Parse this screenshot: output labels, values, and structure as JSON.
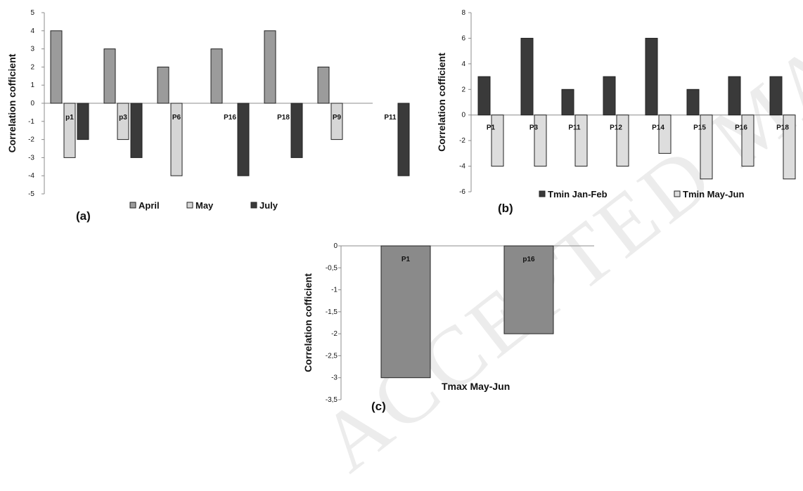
{
  "watermark": "ACCEPTED MANUSCRIPT",
  "colors": {
    "axis": "#8c8c8c",
    "april": "#9b9b9b",
    "may": "#d6d6d6",
    "july": "#3a3a3a",
    "tmin_janfeb": "#3a3a3a",
    "tmin_mayjun": "#dddddd",
    "tmax": "#8a8a8a",
    "bar_stroke": "#222222",
    "text": "#111111"
  },
  "chart_data": [
    {
      "panel_label": "(a)",
      "type": "bar",
      "ylabel": "Correlation cofficient",
      "ylim": [
        -5,
        5
      ],
      "ytick_step": 1,
      "yticks": [
        "5",
        "4",
        "3",
        "2",
        "1",
        "0",
        "-1",
        "-2",
        "-3",
        "-4",
        "-5"
      ],
      "categories": [
        "p1",
        "p3",
        "P6",
        "P16",
        "P18",
        "P9",
        "P11"
      ],
      "series": [
        {
          "name": "April",
          "values": [
            4,
            3,
            2,
            3,
            4,
            2,
            null
          ]
        },
        {
          "name": "May",
          "values": [
            -3,
            -2,
            -4,
            null,
            null,
            -2,
            null
          ]
        },
        {
          "name": "July",
          "values": [
            -2,
            -3,
            null,
            -4,
            -3,
            null,
            -4
          ]
        }
      ],
      "legend": "bottom"
    },
    {
      "panel_label": "(b)",
      "type": "bar",
      "ylabel": "Correlation cofficient",
      "ylim": [
        -6,
        8
      ],
      "ytick_step": 2,
      "yticks": [
        "8",
        "6",
        "4",
        "2",
        "0",
        "-2",
        "-4",
        "-6"
      ],
      "categories": [
        "P1",
        "P3",
        "P11",
        "P12",
        "P14",
        "P15",
        "P16",
        "P18"
      ],
      "series": [
        {
          "name": "Tmin Jan-Feb",
          "values": [
            3,
            6,
            2,
            3,
            6,
            2,
            3,
            3
          ]
        },
        {
          "name": "Tmin May-Jun",
          "values": [
            -4,
            -4,
            -4,
            -4,
            -3,
            -5,
            -4,
            -5
          ]
        }
      ],
      "legend": "bottom"
    },
    {
      "panel_label": "(c)",
      "type": "bar",
      "ylabel": "Correlation cofficient",
      "ylim": [
        -3.5,
        0
      ],
      "ytick_step": 0.5,
      "yticks": [
        "0",
        "-0,5",
        "-1",
        "-1,5",
        "-2",
        "-2,5",
        "-3",
        "-3,5"
      ],
      "categories": [
        "P1",
        "p16"
      ],
      "series": [
        {
          "name": "Tmax May-Jun",
          "values": [
            -3,
            -2
          ]
        }
      ],
      "legend": "bottom"
    }
  ]
}
